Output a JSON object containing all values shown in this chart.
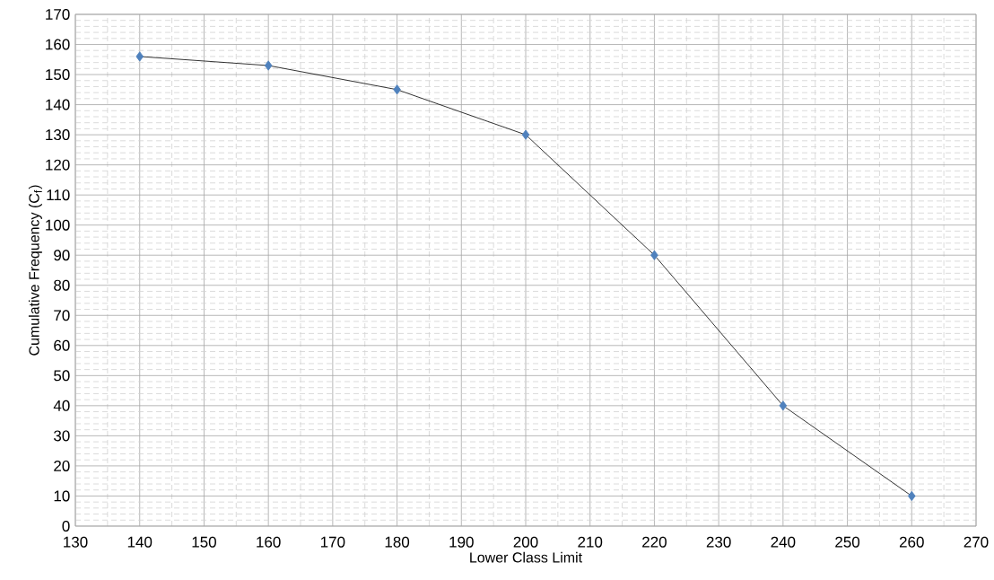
{
  "chart_data": {
    "type": "line",
    "xlabel": "Lower Class Limit",
    "ylabel": "Cumulative Frequency (C$_{f}$)",
    "x": [
      140,
      160,
      180,
      200,
      220,
      240,
      260
    ],
    "series": [
      {
        "color": "#4f81bd",
        "values": [
          156,
          153,
          145,
          130,
          90,
          40,
          10
        ]
      }
    ],
    "xlim": [
      130,
      270
    ],
    "xticks": [
      130,
      140,
      150,
      160,
      170,
      180,
      190,
      200,
      210,
      220,
      230,
      240,
      250,
      260,
      270
    ],
    "ylim": [
      0,
      170
    ],
    "yticks": [
      0,
      10,
      20,
      30,
      40,
      50,
      60,
      70,
      80,
      90,
      100,
      110,
      120,
      130,
      140,
      150,
      160,
      170
    ],
    "grid": true,
    "marker": "diamond",
    "line_style": "solid"
  }
}
